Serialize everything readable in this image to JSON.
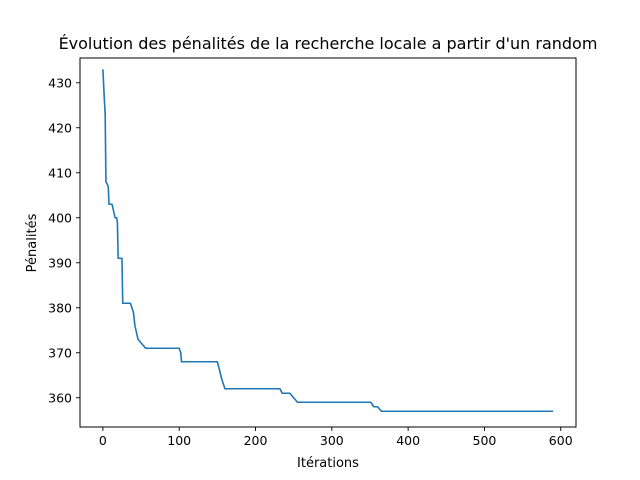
{
  "chart_data": {
    "type": "line",
    "title": "Évolution des pénalités de la recherche locale a partir d'un random",
    "xlabel": "Itérations",
    "ylabel": "Pénalités",
    "xlim": [
      -30,
      620
    ],
    "ylim": [
      353.5,
      435.5
    ],
    "xticks": [
      0,
      100,
      200,
      300,
      400,
      500,
      600
    ],
    "yticks": [
      360,
      370,
      380,
      390,
      400,
      410,
      420,
      430
    ],
    "grid": false,
    "legend": "none",
    "series": [
      {
        "color": "#1f77b4",
        "x": [
          0,
          2,
          3,
          4,
          7,
          8,
          12,
          16,
          18,
          19,
          20,
          25,
          26,
          36,
          38,
          40,
          42,
          46,
          56,
          60,
          100,
          102,
          103,
          150,
          153,
          156,
          158,
          160,
          232,
          235,
          240,
          245,
          255,
          260,
          351,
          355,
          360,
          365,
          590
        ],
        "y": [
          433,
          426,
          423,
          408,
          407,
          403,
          403,
          400,
          400,
          399,
          391,
          391,
          381,
          381,
          380,
          379,
          376,
          373,
          371,
          371,
          371,
          370,
          368,
          368,
          366,
          364,
          363,
          362,
          362,
          361,
          361,
          361,
          359,
          359,
          359,
          358,
          358,
          357,
          357
        ]
      }
    ]
  }
}
